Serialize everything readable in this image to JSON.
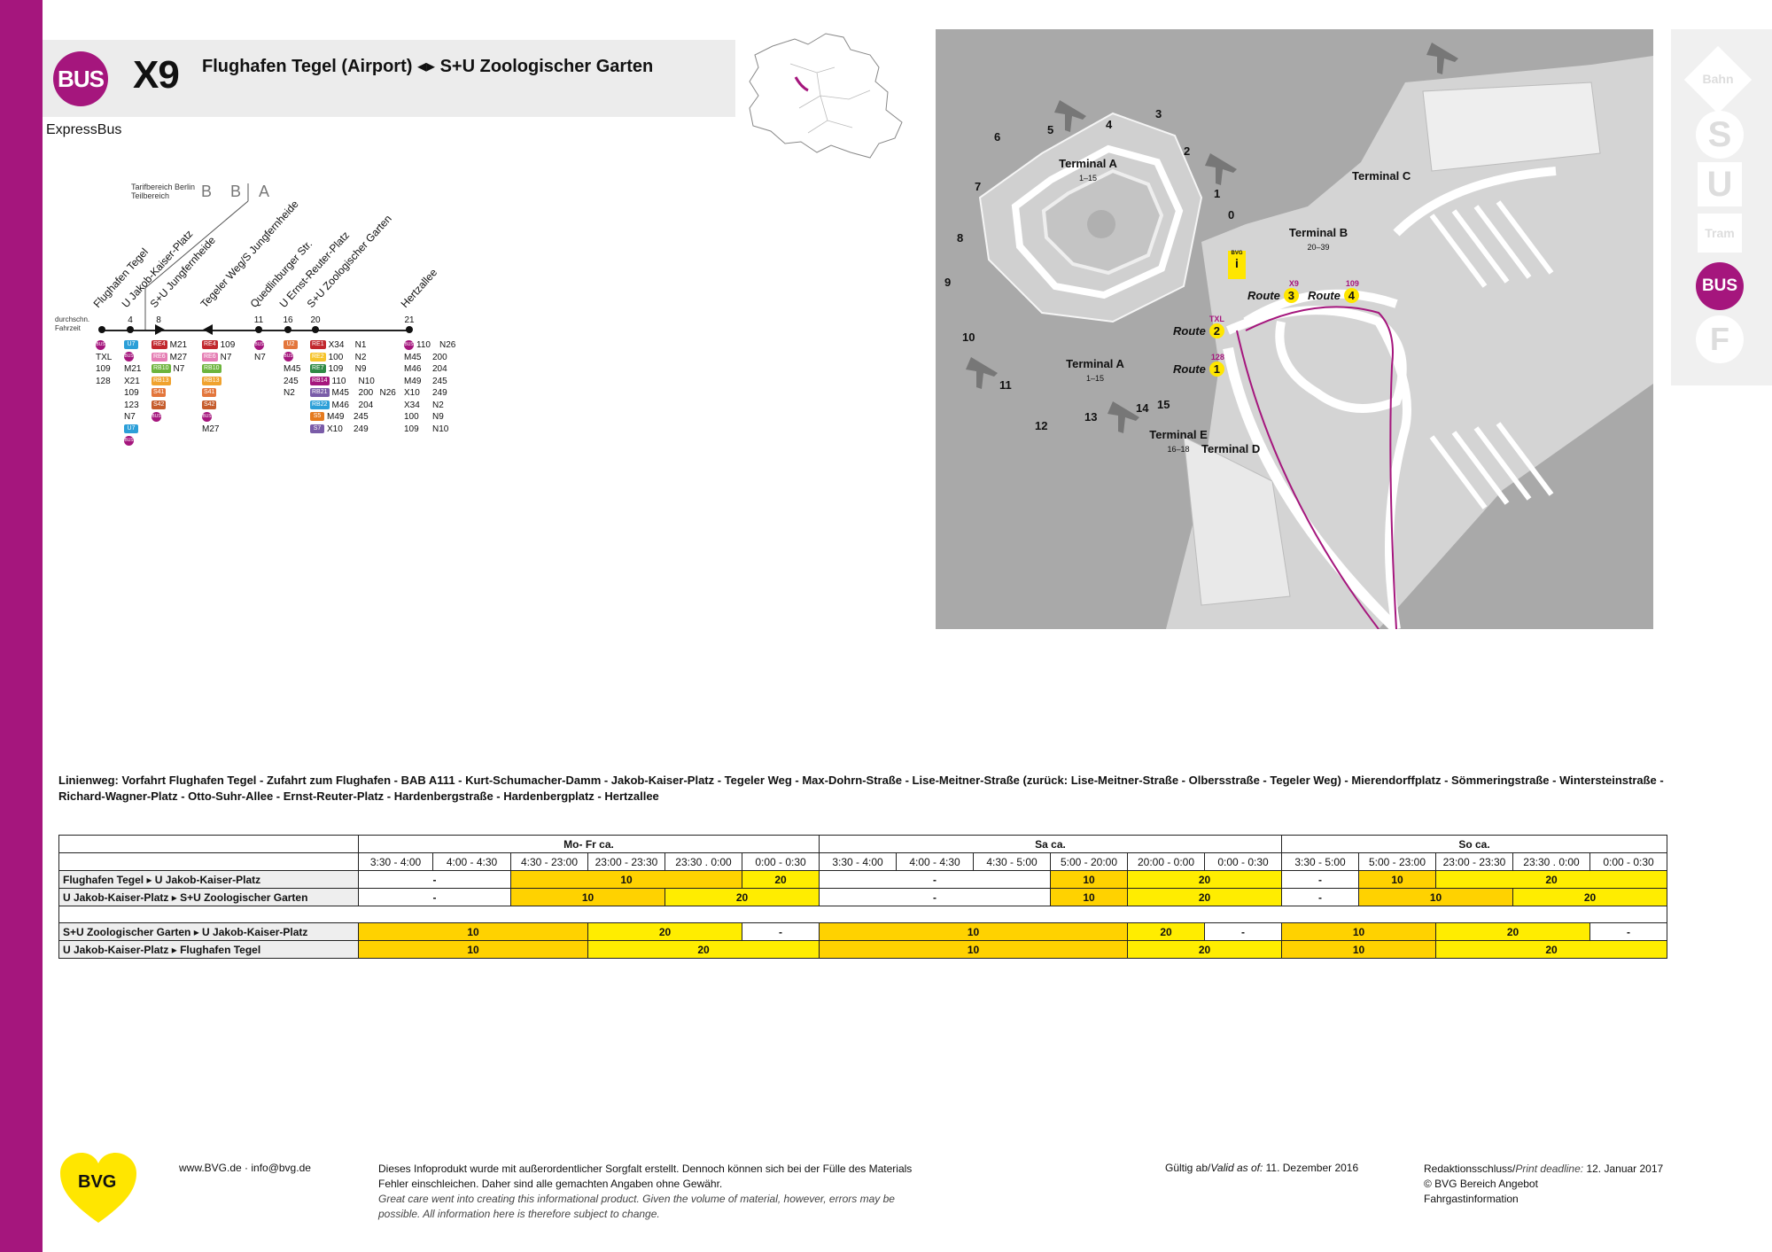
{
  "header": {
    "mode_badge": "BUS",
    "line": "X9",
    "title": "Flughafen Tegel (Airport) ◂▸ S+U Zoologischer Garten",
    "subtitle": "ExpressBus"
  },
  "diagram": {
    "tarif_label_1": "Tarifbereich Berlin",
    "tarif_label_2": "Teilbereich",
    "zones": [
      "B",
      "B",
      "A"
    ],
    "travel_time_label_1": "durchschn.",
    "travel_time_label_2": "Fahrzeit",
    "stops": [
      {
        "name": "Flughafen Tegel",
        "time": ""
      },
      {
        "name": "U Jakob-Kaiser-Platz",
        "time": "4"
      },
      {
        "name": "S+U Jungfernheide",
        "time": "8"
      },
      {
        "name": "Tegeler Weg/S Jungfernheide",
        "time": ""
      },
      {
        "name": "Quedlinburger Str.",
        "time": "11"
      },
      {
        "name": "U Ernst-Reuter-Platz",
        "time": "16"
      },
      {
        "name": "S+U Zoologischer Garten",
        "time": "20"
      },
      {
        "name": "Hertzallee",
        "time": "21"
      }
    ],
    "connections": [
      {
        "badges": [
          {
            "t": "BUS",
            "c": "#a5167d",
            "round": true
          }
        ],
        "lines": [
          "TXL",
          "109",
          "128"
        ]
      },
      {
        "badges": [
          {
            "t": "U7",
            "c": "#2c9fd8"
          },
          {
            "t": "BUS",
            "c": "#a5167d",
            "round": true
          }
        ],
        "lines": [
          "M21",
          "X21",
          "109",
          "123",
          "N7"
        ],
        "extra": [
          {
            "t": "U7",
            "c": "#2c9fd8"
          },
          {
            "t": "BUS",
            "c": "#a5167d",
            "round": true
          }
        ]
      },
      {
        "rows": [
          [
            "RE4",
            "#c1272d",
            "M21"
          ],
          [
            "RE6",
            "#e57eb4",
            "M27"
          ],
          [
            "RB10",
            "#6cb43c",
            "N7"
          ],
          [
            "RB13",
            "#f0a22e",
            ""
          ],
          [
            "S41",
            "#e3763c",
            ""
          ],
          [
            "S42",
            "#c65c2c",
            ""
          ]
        ]
      },
      {
        "rows": [
          [
            "RE4",
            "#c1272d",
            "109"
          ],
          [
            "RE6",
            "#e57eb4",
            "N7"
          ],
          [
            "RB10",
            "#6cb43c",
            ""
          ],
          [
            "RB13",
            "#f0a22e",
            ""
          ],
          [
            "S41",
            "#e3763c",
            ""
          ],
          [
            "S42",
            "#c65c2c",
            ""
          ]
        ],
        "bus_extra": "M27"
      },
      {
        "lines": [
          "N7"
        ]
      },
      {
        "lines": [
          "M45",
          "245",
          "N2"
        ]
      },
      {
        "rows": [
          [
            "RE1",
            "#c1272d",
            "X34",
            "N1"
          ],
          [
            "RE2",
            "#f6c42b",
            "100",
            "N2"
          ],
          [
            "RE7",
            "#2e8a44",
            "109",
            "N9"
          ],
          [
            "RB14",
            "#a5167d",
            "110",
            "N10"
          ],
          [
            "RB21",
            "#7a5ca8",
            "M45",
            "200",
            "N26"
          ],
          [
            "RB22",
            "#2c9fd8",
            "M46",
            "204"
          ],
          [
            "S5",
            "#e57a1f",
            "M49",
            "245"
          ],
          [
            "S7",
            "#7a5ca8",
            "X10",
            "249"
          ]
        ]
      },
      {
        "rows": [
          [
            "110",
            "N26"
          ],
          [
            "M45",
            "200"
          ],
          [
            "M46",
            "204"
          ],
          [
            "M49",
            "245"
          ],
          [
            "X10",
            "249"
          ],
          [
            "X34",
            "N2"
          ],
          [
            "100",
            "N9"
          ],
          [
            "109",
            "N10"
          ]
        ]
      }
    ]
  },
  "airport_map": {
    "terminal_a_top": "Terminal A",
    "terminal_a_top_sub": "1–15",
    "terminal_a_bottom": "Terminal A",
    "terminal_a_bottom_sub": "1–15",
    "terminal_b": "Terminal B",
    "terminal_b_sub": "20–39",
    "terminal_c": "Terminal C",
    "terminal_d": "Terminal D",
    "terminal_e": "Terminal E",
    "terminal_e_sub": "16–18",
    "gates": [
      "0",
      "1",
      "2",
      "3",
      "4",
      "5",
      "6",
      "7",
      "8",
      "9",
      "10",
      "11",
      "12",
      "13",
      "14",
      "15"
    ],
    "routes": [
      {
        "label": "Route",
        "no": "1",
        "line": "128"
      },
      {
        "label": "Route",
        "no": "2",
        "line": "TXL"
      },
      {
        "label": "Route",
        "no": "3",
        "line": "X9"
      },
      {
        "label": "Route",
        "no": "4",
        "line": "109"
      }
    ],
    "info_label": "BVG"
  },
  "mode_icons": [
    "Bahn",
    "S",
    "U",
    "Tram",
    "BUS",
    "F"
  ],
  "linienweg": "Linienweg: Vorfahrt Flughafen Tegel - Zufahrt zum Flughafen - BAB A111 - Kurt-Schumacher-Damm - Jakob-Kaiser-Platz - Tegeler Weg - Max-Dohrn-Straße - Lise-Meitner-Straße (zurück: Lise-Meitner-Straße - Olbersstraße - Tegeler Weg) - Mierendorffplatz - Sömmeringstraße - Wintersteinstraße - Richard-Wagner-Platz - Otto-Suhr-Allee - Ernst-Reuter-Platz - Hardenbergstraße - Hardenbergplatz - Hertzallee",
  "timetable": {
    "day_groups": [
      {
        "label": "Mo- Fr ca.",
        "span": 6
      },
      {
        "label": "Sa ca.",
        "span": 6
      },
      {
        "label": "So ca.",
        "span": 5
      }
    ],
    "periods": [
      "3:30 - 4:00",
      "4:00 - 4:30",
      "4:30 - 23:00",
      "23:00 - 23:30",
      "23:30 . 0:00",
      "0:00 - 0:30",
      "3:30 - 4:00",
      "4:00 - 4:30",
      "4:30 - 5:00",
      "5:00 - 20:00",
      "20:00 - 0:00",
      "0:00 - 0:30",
      "3:30 - 5:00",
      "5:00 - 23:00",
      "23:00 - 23:30",
      "23:30 . 0:00",
      "0:00 - 0:30"
    ],
    "rows": [
      {
        "label": "Flughafen Tegel ▸ U Jakob-Kaiser-Platz",
        "cells": [
          [
            "-",
            2,
            "w"
          ],
          [
            "10",
            3,
            "y1"
          ],
          [
            "20",
            1,
            "y2"
          ],
          [
            "-",
            3,
            "w"
          ],
          [
            "10",
            1,
            "y1"
          ],
          [
            "20",
            2,
            "y2"
          ],
          [
            "-",
            1,
            "w"
          ],
          [
            "10",
            1,
            "y1"
          ],
          [
            "20",
            3,
            "y2"
          ]
        ]
      },
      {
        "label": "U Jakob-Kaiser-Platz ▸ S+U Zoologischer Garten",
        "cells": [
          [
            "-",
            2,
            "w"
          ],
          [
            "10",
            2,
            "y1"
          ],
          [
            "20",
            2,
            "y2"
          ],
          [
            "-",
            3,
            "w"
          ],
          [
            "10",
            1,
            "y1"
          ],
          [
            "20",
            2,
            "y2"
          ],
          [
            "-",
            1,
            "w"
          ],
          [
            "10",
            2,
            "y1"
          ],
          [
            "20",
            2,
            "y2"
          ]
        ]
      },
      {
        "gap": true
      },
      {
        "label": "S+U Zoologischer Garten ▸ U Jakob-Kaiser-Platz",
        "cells": [
          [
            "10",
            3,
            "y1"
          ],
          [
            "20",
            2,
            "y2"
          ],
          [
            "-",
            1,
            "w"
          ],
          [
            "10",
            4,
            "y1"
          ],
          [
            "20",
            1,
            "y2"
          ],
          [
            "-",
            1,
            "w"
          ],
          [
            "10",
            2,
            "y1"
          ],
          [
            "20",
            2,
            "y2"
          ],
          [
            "-",
            1,
            "w"
          ]
        ]
      },
      {
        "label": "U Jakob-Kaiser-Platz ▸ Flughafen Tegel",
        "cells": [
          [
            "10",
            3,
            "y1"
          ],
          [
            "20",
            3,
            "y2"
          ],
          [
            "10",
            4,
            "y1"
          ],
          [
            "20",
            2,
            "y2"
          ],
          [
            "10",
            2,
            "y1"
          ],
          [
            "20",
            3,
            "y2"
          ]
        ]
      }
    ]
  },
  "footer": {
    "logo": "BVG",
    "web": "www.BVG.de · info@bvg.de",
    "disclaimer_de": "Dieses Infoprodukt wurde mit außerordentlicher Sorgfalt erstellt. Dennoch können sich bei der Fülle des Materials Fehler einschleichen. Daher sind alle gemachten Angaben ohne Gewähr.",
    "disclaimer_en": "Great care went into creating this informational product. Given the volume of material, however, errors may be possible. All information here is therefore subject to change.",
    "valid_label": "Gültig ab/",
    "valid_label_en": "Valid as of:",
    "valid_date": "11. Dezember 2016",
    "deadline_label": "Redaktionsschluss/",
    "deadline_label_en": "Print deadline:",
    "deadline_date": "12. Januar 2017",
    "copyright": "© BVG Bereich Angebot",
    "dept": "Fahrgastinformation"
  },
  "colors": {
    "accent": "#a5167d",
    "yellow_dark": "#ffd200",
    "yellow_light": "#ffed00"
  }
}
